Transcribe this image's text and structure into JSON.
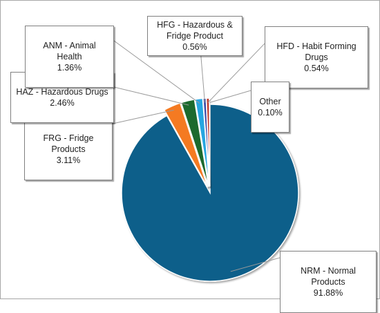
{
  "chart_data": {
    "type": "pie",
    "slices": [
      {
        "label": "NRM - Normal Products",
        "value": 91.88,
        "display": "91.88%",
        "color": "#0e5f8a",
        "exploded": false
      },
      {
        "label": "FRG - Fridge Products",
        "value": 3.11,
        "display": "3.11%",
        "color": "#f47a20",
        "exploded": true
      },
      {
        "label": "HAZ - Hazardous Drugs",
        "value": 2.46,
        "display": "2.46%",
        "color": "#1a6b2f",
        "exploded": true
      },
      {
        "label": "ANM - Animal Health",
        "value": 1.36,
        "display": "1.36%",
        "color": "#27a6e1",
        "exploded": true
      },
      {
        "label": "HFG - Hazardous & Fridge Product",
        "value": 0.56,
        "display": "0.56%",
        "color": "#3a4aa8",
        "exploded": true
      },
      {
        "label": "HFD - Habit Forming Drugs",
        "value": 0.54,
        "display": "0.54%",
        "color": "#c0392b",
        "exploded": true
      },
      {
        "label": "Other",
        "value": 0.1,
        "display": "0.10%",
        "color": "#3aa53a",
        "exploded": true
      }
    ],
    "data_labels": "callout boxes with leader lines",
    "legend": "none"
  }
}
